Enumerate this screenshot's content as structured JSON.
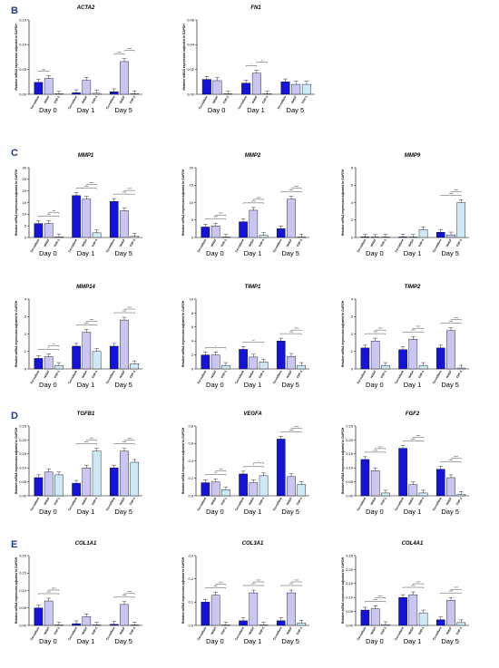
{
  "colors": {
    "coculture": "#1414d6",
    "nhdf": "#c9c6f2",
    "thp1": "#cde9f5",
    "edge": "#000000",
    "letter": "#1f3c88"
  },
  "panel_labels": [
    "B",
    "C",
    "D",
    "E"
  ],
  "y_axis_label": "Relative mRNA expression adjusted to GAPDH",
  "x_categories": [
    "Co-culture",
    "NHDF",
    "THP-1"
  ],
  "x_groups": [
    "Day 0",
    "Day 1",
    "Day 5"
  ],
  "chart_data": [
    {
      "type": "bar",
      "title": "ACTA2",
      "ylabel": "Relative mRNA expression adjusted to GAPDH",
      "ylim": [
        0,
        0.15
      ],
      "yticks": [
        0.0,
        0.05,
        0.1,
        0.15
      ],
      "groups": [
        "Day 0",
        "Day 1",
        "Day 5"
      ],
      "series": [
        {
          "name": "Co-culture",
          "values": [
            0.024,
            0.003,
            0.005
          ]
        },
        {
          "name": "NHDF",
          "values": [
            0.032,
            0.028,
            0.066
          ]
        },
        {
          "name": "THP-1",
          "values": [
            0.0,
            0.002,
            0.001
          ]
        }
      ],
      "sig": [
        {
          "day": 0,
          "pair": "c-n",
          "text": "ns"
        },
        {
          "day": 2,
          "pair": "c-n",
          "text": "****"
        },
        {
          "day": 2,
          "pair": "n-t",
          "text": "****"
        }
      ]
    },
    {
      "type": "bar",
      "title": "FN1",
      "ylabel": "Relative mRNA expression adjusted to GAPDH",
      "ylim": [
        0,
        0.06
      ],
      "yticks": [
        0.0,
        0.02,
        0.04,
        0.06
      ],
      "groups": [
        "Day 0",
        "Day 1",
        "Day 5"
      ],
      "series": [
        {
          "name": "Co-culture",
          "values": [
            0.012,
            0.009,
            0.01
          ]
        },
        {
          "name": "NHDF",
          "values": [
            0.011,
            0.017,
            0.008
          ]
        },
        {
          "name": "THP-1",
          "values": [
            0.0,
            0.0,
            0.008
          ]
        }
      ],
      "sig": [
        {
          "day": 1,
          "pair": "c-n",
          "text": "*"
        },
        {
          "day": 1,
          "pair": "n-t",
          "text": "*"
        }
      ]
    },
    {
      "type": "bar",
      "title": "MMP1",
      "ylabel": "Relative mRNA expression adjusted to GAPDH",
      "ylim": [
        0,
        30
      ],
      "yticks": [
        0,
        5,
        10,
        15,
        20,
        25,
        30
      ],
      "groups": [
        "Day 0",
        "Day 1",
        "Day 5"
      ],
      "series": [
        {
          "name": "Co-culture",
          "values": [
            6.0,
            18.0,
            15.5
          ]
        },
        {
          "name": "NHDF",
          "values": [
            6.0,
            16.5,
            11.5
          ]
        },
        {
          "name": "THP-1",
          "values": [
            0.3,
            2.0,
            0.5
          ]
        }
      ],
      "sig": [
        {
          "day": 0,
          "pair": "c-t",
          "text": "***"
        },
        {
          "day": 0,
          "pair": "n-t",
          "text": "***"
        },
        {
          "day": 1,
          "pair": "c-t",
          "text": "****"
        },
        {
          "day": 1,
          "pair": "n-t",
          "text": "****"
        },
        {
          "day": 2,
          "pair": "c-t",
          "text": "****"
        },
        {
          "day": 2,
          "pair": "n-t",
          "text": "****"
        }
      ]
    },
    {
      "type": "bar",
      "title": "MMP2",
      "ylabel": "Relative mRNA expression adjusted to GAPDH",
      "ylim": [
        0,
        20
      ],
      "yticks": [
        0,
        5,
        10,
        15,
        20
      ],
      "groups": [
        "Day 0",
        "Day 1",
        "Day 5"
      ],
      "series": [
        {
          "name": "Co-culture",
          "values": [
            3.0,
            4.5,
            2.5
          ]
        },
        {
          "name": "NHDF",
          "values": [
            3.3,
            7.8,
            11.0
          ]
        },
        {
          "name": "THP-1",
          "values": [
            0.1,
            0.6,
            0.1
          ]
        }
      ],
      "sig": [
        {
          "day": 0,
          "pair": "c-t",
          "text": "****"
        },
        {
          "day": 0,
          "pair": "n-t",
          "text": "****"
        },
        {
          "day": 1,
          "pair": "c-t",
          "text": "****"
        },
        {
          "day": 1,
          "pair": "n-t",
          "text": "****"
        },
        {
          "day": 2,
          "pair": "c-t",
          "text": "****"
        },
        {
          "day": 2,
          "pair": "n-t",
          "text": "****"
        }
      ]
    },
    {
      "type": "bar",
      "title": "MMP9",
      "ylabel": "Relative mRNA expression adjusted to GAPDH",
      "ylim": [
        0,
        8
      ],
      "yticks": [
        0,
        2,
        4,
        6,
        8
      ],
      "groups": [
        "Day 0",
        "Day 1",
        "Day 5"
      ],
      "series": [
        {
          "name": "Co-culture",
          "values": [
            0.02,
            0.05,
            0.6
          ]
        },
        {
          "name": "NHDF",
          "values": [
            0.01,
            0.02,
            0.3
          ]
        },
        {
          "name": "THP-1",
          "values": [
            0.05,
            0.9,
            4.0
          ]
        }
      ],
      "sig": [
        {
          "day": 2,
          "pair": "c-t",
          "text": "****"
        },
        {
          "day": 2,
          "pair": "n-t",
          "text": "****"
        }
      ]
    },
    {
      "type": "bar",
      "title": "MMP14",
      "ylabel": "Relative mRNA expression adjusted to GAPDH",
      "ylim": [
        0,
        4
      ],
      "yticks": [
        0,
        1,
        2,
        3,
        4
      ],
      "groups": [
        "Day 0",
        "Day 1",
        "Day 5"
      ],
      "series": [
        {
          "name": "Co-culture",
          "values": [
            0.6,
            1.3,
            1.3
          ]
        },
        {
          "name": "NHDF",
          "values": [
            0.7,
            2.1,
            2.8
          ]
        },
        {
          "name": "THP-1",
          "values": [
            0.2,
            1.0,
            0.3
          ]
        }
      ],
      "sig": [
        {
          "day": 0,
          "pair": "c-t",
          "text": "*"
        },
        {
          "day": 0,
          "pair": "n-t",
          "text": "**"
        },
        {
          "day": 1,
          "pair": "c-t",
          "text": "****"
        },
        {
          "day": 1,
          "pair": "n-t",
          "text": "****"
        },
        {
          "day": 2,
          "pair": "c-t",
          "text": "****"
        },
        {
          "day": 2,
          "pair": "n-t",
          "text": "****"
        }
      ]
    },
    {
      "type": "bar",
      "title": "TIMP1",
      "ylabel": "Relative mRNA expression adjusted to GAPDH",
      "ylim": [
        0,
        10
      ],
      "yticks": [
        0,
        2,
        4,
        6,
        8,
        10
      ],
      "groups": [
        "Day 0",
        "Day 1",
        "Day 5"
      ],
      "series": [
        {
          "name": "Co-culture",
          "values": [
            2.0,
            2.8,
            4.0
          ]
        },
        {
          "name": "NHDF",
          "values": [
            2.0,
            1.7,
            1.8
          ]
        },
        {
          "name": "THP-1",
          "values": [
            0.5,
            1.0,
            0.5
          ]
        }
      ],
      "sig": [
        {
          "day": 0,
          "pair": "c-t",
          "text": "*"
        },
        {
          "day": 1,
          "pair": "c-t",
          "text": "**"
        },
        {
          "day": 2,
          "pair": "c-t",
          "text": "****"
        },
        {
          "day": 2,
          "pair": "n-t",
          "text": "****"
        }
      ]
    },
    {
      "type": "bar",
      "title": "TIMP2",
      "ylabel": "Relative mRNA expression adjusted to GAPDH",
      "ylim": [
        0,
        4
      ],
      "yticks": [
        0,
        1,
        2,
        3,
        4
      ],
      "groups": [
        "Day 0",
        "Day 1",
        "Day 5"
      ],
      "series": [
        {
          "name": "Co-culture",
          "values": [
            1.2,
            1.1,
            1.2
          ]
        },
        {
          "name": "NHDF",
          "values": [
            1.6,
            1.7,
            2.2
          ]
        },
        {
          "name": "THP-1",
          "values": [
            0.2,
            0.2,
            0.05
          ]
        }
      ],
      "sig": [
        {
          "day": 0,
          "pair": "c-t",
          "text": "****"
        },
        {
          "day": 0,
          "pair": "n-t",
          "text": "****"
        },
        {
          "day": 1,
          "pair": "c-t",
          "text": "****"
        },
        {
          "day": 1,
          "pair": "n-t",
          "text": "****"
        },
        {
          "day": 2,
          "pair": "c-t",
          "text": "****"
        },
        {
          "day": 2,
          "pair": "n-t",
          "text": "****"
        }
      ]
    },
    {
      "type": "bar",
      "title": "TGFB1",
      "ylabel": "Relative mRNA expression adjusted to GAPDH",
      "ylim": [
        0,
        0.25
      ],
      "yticks": [
        0.0,
        0.05,
        0.1,
        0.15,
        0.2,
        0.25
      ],
      "groups": [
        "Day 0",
        "Day 1",
        "Day 5"
      ],
      "series": [
        {
          "name": "Co-culture",
          "values": [
            0.065,
            0.045,
            0.1
          ]
        },
        {
          "name": "NHDF",
          "values": [
            0.085,
            0.1,
            0.16
          ]
        },
        {
          "name": "THP-1",
          "values": [
            0.075,
            0.16,
            0.12
          ]
        }
      ],
      "sig": [
        {
          "day": 1,
          "pair": "c-t",
          "text": "****"
        },
        {
          "day": 1,
          "pair": "n-t",
          "text": "****"
        },
        {
          "day": 2,
          "pair": "c-t",
          "text": "****"
        },
        {
          "day": 2,
          "pair": "n-t",
          "text": "****"
        }
      ]
    },
    {
      "type": "bar",
      "title": "VEGFA",
      "ylabel": "Relative mRNA expression adjusted to GAPDH",
      "ylim": [
        0,
        0.8
      ],
      "yticks": [
        0.0,
        0.2,
        0.4,
        0.6,
        0.8
      ],
      "groups": [
        "Day 0",
        "Day 1",
        "Day 5"
      ],
      "series": [
        {
          "name": "Co-culture",
          "values": [
            0.15,
            0.25,
            0.65
          ]
        },
        {
          "name": "NHDF",
          "values": [
            0.16,
            0.15,
            0.22
          ]
        },
        {
          "name": "THP-1",
          "values": [
            0.07,
            0.23,
            0.13
          ]
        }
      ],
      "sig": [
        {
          "day": 0,
          "pair": "c-t",
          "text": "**"
        },
        {
          "day": 0,
          "pair": "n-t",
          "text": "***"
        },
        {
          "day": 1,
          "pair": "c-t",
          "text": "*"
        },
        {
          "day": 1,
          "pair": "n-t",
          "text": "*"
        },
        {
          "day": 2,
          "pair": "c-t",
          "text": "****"
        },
        {
          "day": 2,
          "pair": "n-t",
          "text": "****"
        }
      ]
    },
    {
      "type": "bar",
      "title": "FGF2",
      "ylabel": "Relative mRNA expression adjusted to GAPDH",
      "ylim": [
        0,
        0.25
      ],
      "yticks": [
        0.0,
        0.05,
        0.1,
        0.15,
        0.2,
        0.25
      ],
      "groups": [
        "Day 0",
        "Day 1",
        "Day 5"
      ],
      "series": [
        {
          "name": "Co-culture",
          "values": [
            0.13,
            0.17,
            0.095
          ]
        },
        {
          "name": "NHDF",
          "values": [
            0.09,
            0.04,
            0.065
          ]
        },
        {
          "name": "THP-1",
          "values": [
            0.01,
            0.01,
            0.005
          ]
        }
      ],
      "sig": [
        {
          "day": 0,
          "pair": "c-t",
          "text": "****"
        },
        {
          "day": 0,
          "pair": "n-t",
          "text": "****"
        },
        {
          "day": 1,
          "pair": "c-t",
          "text": "****"
        },
        {
          "day": 1,
          "pair": "n-t",
          "text": "****"
        },
        {
          "day": 2,
          "pair": "c-t",
          "text": "****"
        },
        {
          "day": 2,
          "pair": "n-t",
          "text": "****"
        }
      ]
    },
    {
      "type": "bar",
      "title": "COL1A1",
      "ylabel": "Relative mRNA expression adjusted to GAPDH",
      "ylim": [
        0,
        0.2
      ],
      "yticks": [
        0.0,
        0.05,
        0.1,
        0.15,
        0.2
      ],
      "groups": [
        "Day 0",
        "Day 1",
        "Day 5"
      ],
      "series": [
        {
          "name": "Co-culture",
          "values": [
            0.05,
            0.005,
            0.003
          ]
        },
        {
          "name": "NHDF",
          "values": [
            0.07,
            0.025,
            0.06
          ]
        },
        {
          "name": "THP-1",
          "values": [
            0.001,
            0.001,
            0.001
          ]
        }
      ],
      "sig": [
        {
          "day": 0,
          "pair": "c-t",
          "text": "****"
        },
        {
          "day": 0,
          "pair": "n-t",
          "text": "****"
        },
        {
          "day": 2,
          "pair": "c-t",
          "text": "****"
        },
        {
          "day": 2,
          "pair": "n-t",
          "text": "****"
        }
      ]
    },
    {
      "type": "bar",
      "title": "COL3A1",
      "ylabel": "Relative mRNA expression adjusted to GAPDH",
      "ylim": [
        0,
        0.3
      ],
      "yticks": [
        0.0,
        0.1,
        0.2,
        0.3
      ],
      "groups": [
        "Day 0",
        "Day 1",
        "Day 5"
      ],
      "series": [
        {
          "name": "Co-culture",
          "values": [
            0.1,
            0.02,
            0.02
          ]
        },
        {
          "name": "NHDF",
          "values": [
            0.13,
            0.14,
            0.14
          ]
        },
        {
          "name": "THP-1",
          "values": [
            0.002,
            0.002,
            0.01
          ]
        }
      ],
      "sig": [
        {
          "day": 0,
          "pair": "c-t",
          "text": "***"
        },
        {
          "day": 0,
          "pair": "n-t",
          "text": "****"
        },
        {
          "day": 1,
          "pair": "c-t",
          "text": "****"
        },
        {
          "day": 1,
          "pair": "n-t",
          "text": "****"
        },
        {
          "day": 2,
          "pair": "c-t",
          "text": "****"
        },
        {
          "day": 2,
          "pair": "n-t",
          "text": "****"
        }
      ]
    },
    {
      "type": "bar",
      "title": "COL4A1",
      "ylabel": "Relative mRNA expression adjusted to GAPDH",
      "ylim": [
        0,
        0.25
      ],
      "yticks": [
        0.0,
        0.05,
        0.1,
        0.15,
        0.2,
        0.25
      ],
      "groups": [
        "Day 0",
        "Day 1",
        "Day 5"
      ],
      "series": [
        {
          "name": "Co-culture",
          "values": [
            0.055,
            0.1,
            0.02
          ]
        },
        {
          "name": "NHDF",
          "values": [
            0.06,
            0.11,
            0.09
          ]
        },
        {
          "name": "THP-1",
          "values": [
            0.003,
            0.045,
            0.01
          ]
        }
      ],
      "sig": [
        {
          "day": 0,
          "pair": "c-t",
          "text": "****"
        },
        {
          "day": 0,
          "pair": "n-t",
          "text": "****"
        },
        {
          "day": 1,
          "pair": "c-t",
          "text": "****"
        },
        {
          "day": 1,
          "pair": "n-t",
          "text": "****"
        },
        {
          "day": 2,
          "pair": "c-t",
          "text": "****"
        },
        {
          "day": 2,
          "pair": "n-t",
          "text": "****"
        }
      ]
    }
  ]
}
